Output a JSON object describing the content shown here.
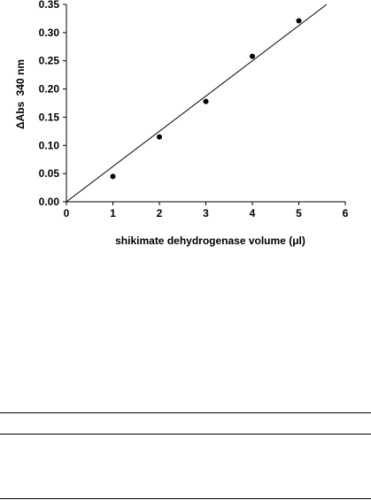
{
  "chart_data": {
    "type": "scatter",
    "xlabel": "shikimate dehydrogenase volume (μl)",
    "ylabel_main": "ΔAbs",
    "ylabel_sub": "340 nm",
    "xlim": [
      0,
      6
    ],
    "ylim": [
      0,
      0.35
    ],
    "x_ticks": [
      "0",
      "1",
      "2",
      "3",
      "4",
      "5",
      "6"
    ],
    "y_ticks": [
      "0.00",
      "0.05",
      "0.10",
      "0.15",
      "0.20",
      "0.25",
      "0.30",
      "0.35"
    ],
    "grid": false,
    "legend": "none",
    "series": [
      {
        "points": [
          {
            "x": 1,
            "y": 0.045
          },
          {
            "x": 2,
            "y": 0.115
          },
          {
            "x": 3,
            "y": 0.178
          },
          {
            "x": 4,
            "y": 0.258
          },
          {
            "x": 5,
            "y": 0.321
          }
        ]
      }
    ],
    "fit_line": {
      "x": [
        0,
        5.6
      ],
      "y": [
        0,
        0.35
      ]
    },
    "colors": {
      "marker": "#000000",
      "line": "#000000",
      "axis": "#000000"
    }
  }
}
